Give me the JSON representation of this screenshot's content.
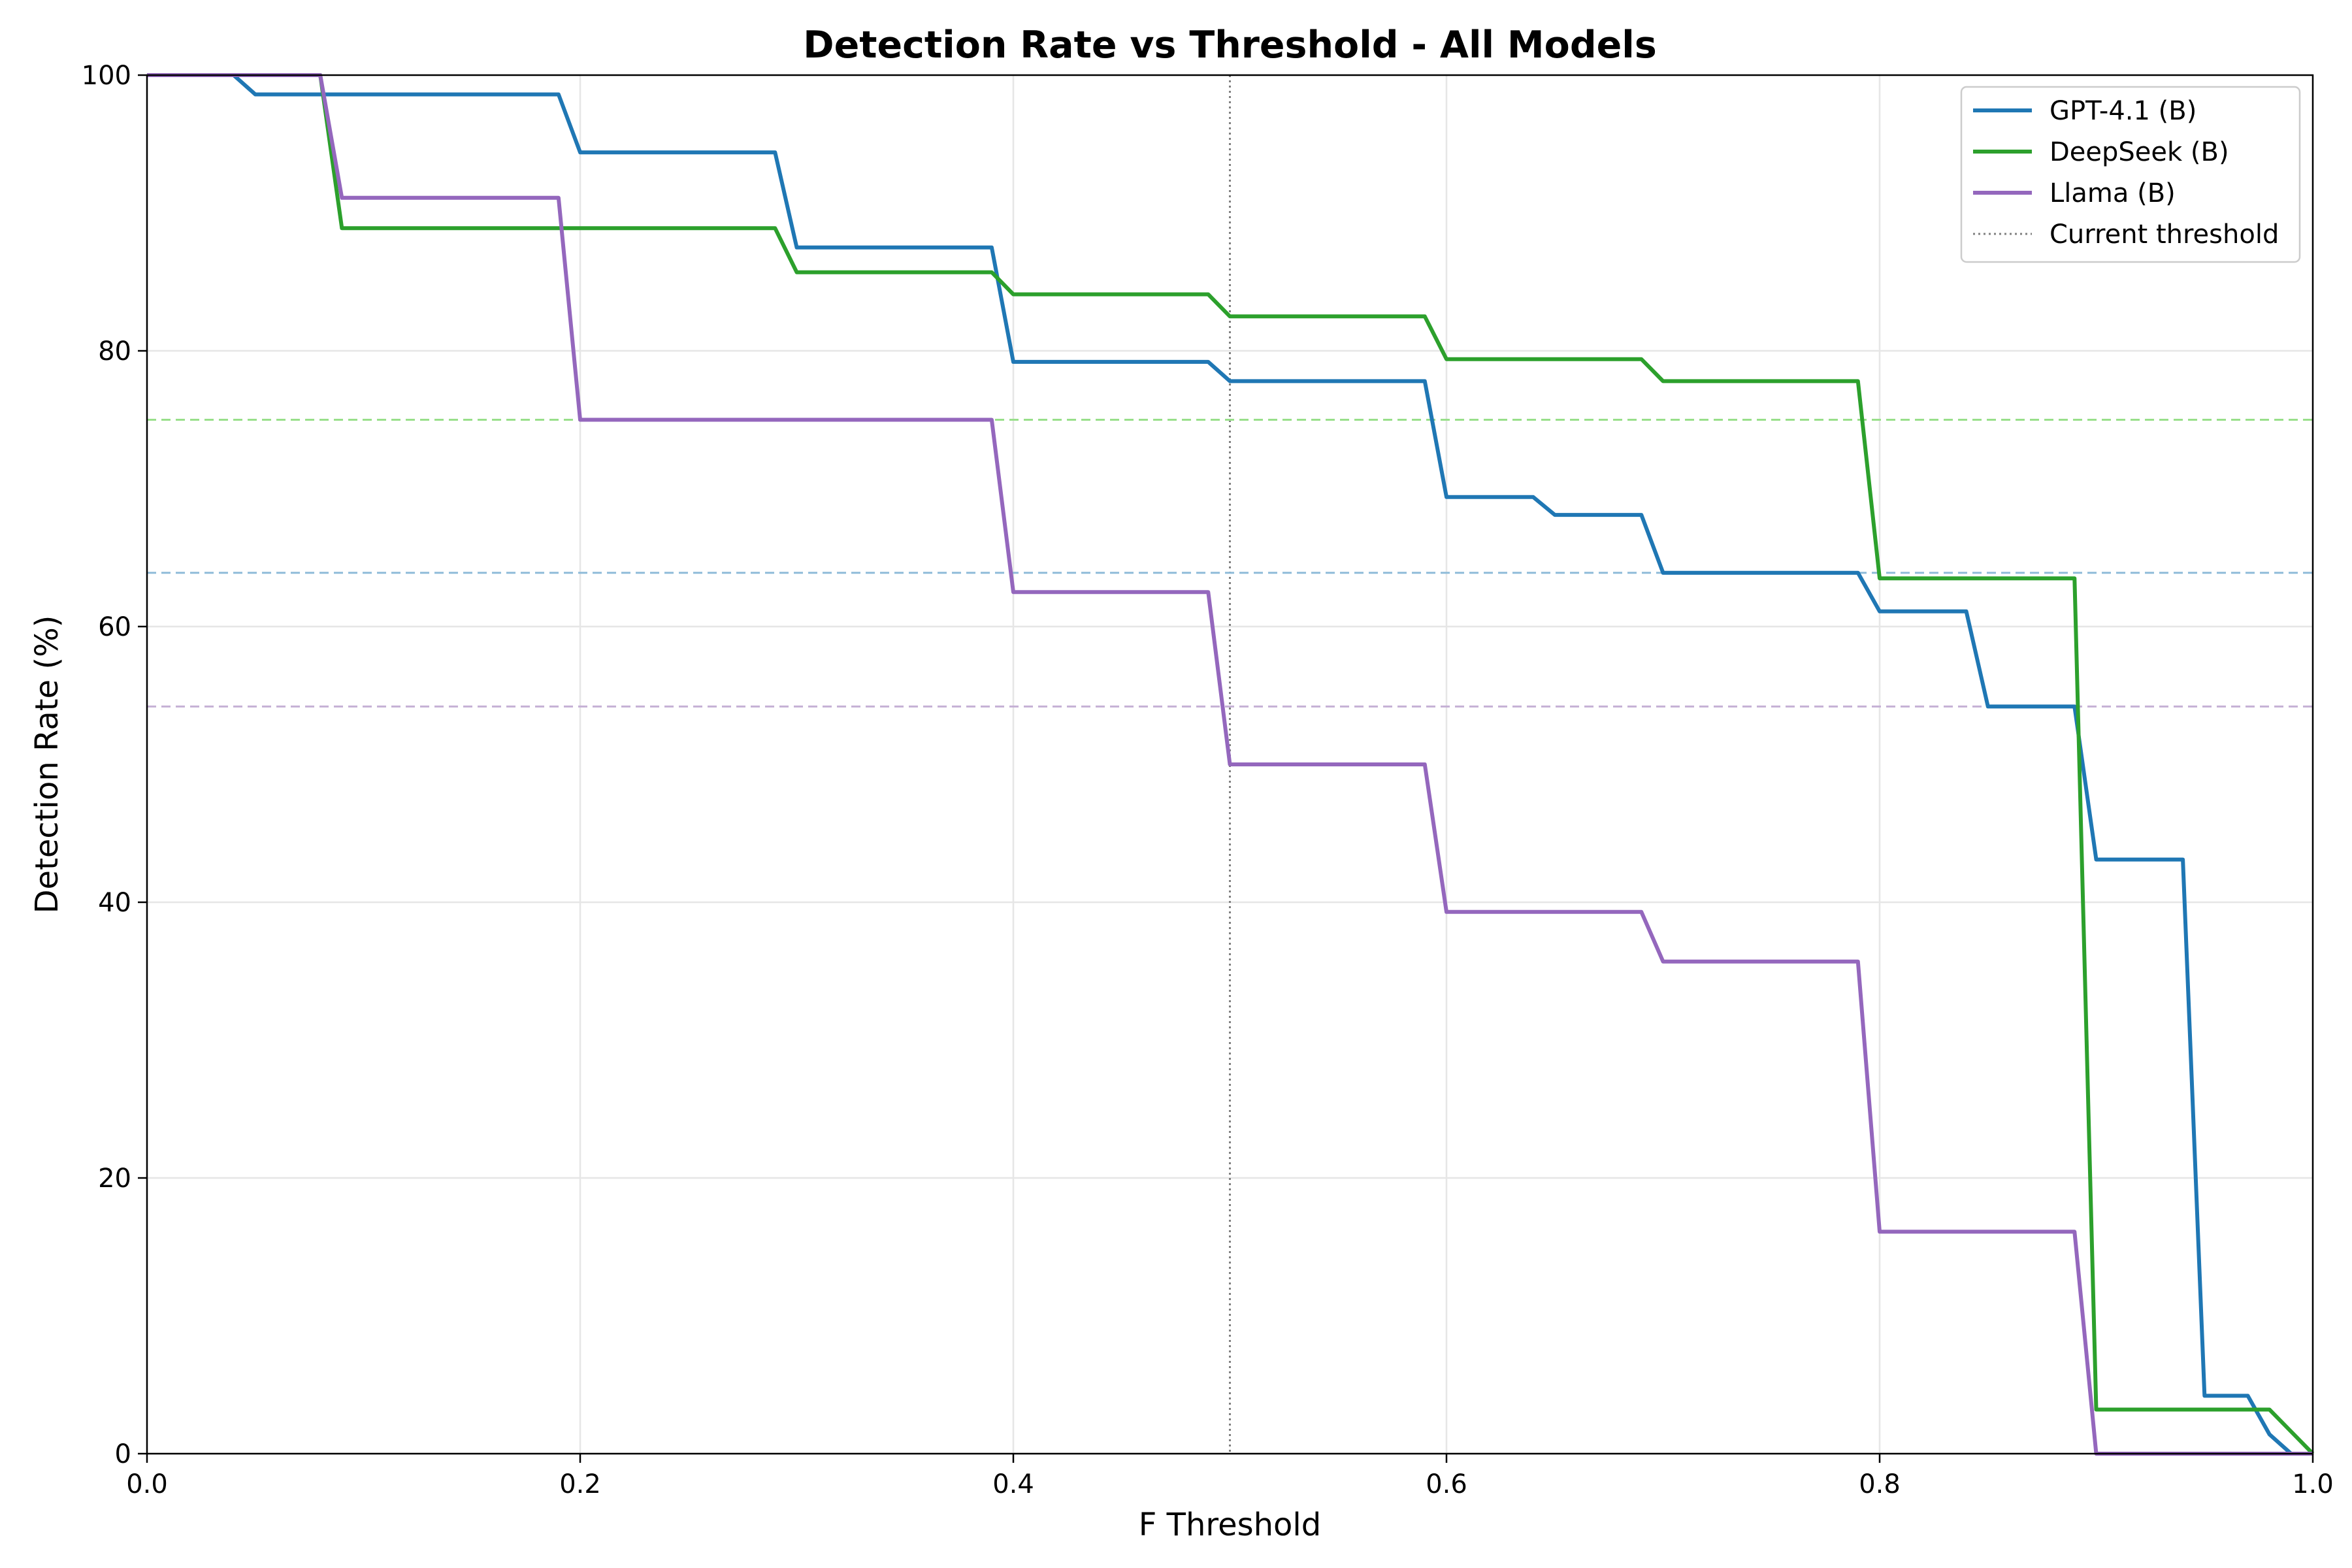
{
  "chart_data": {
    "type": "line",
    "title": "Detection Rate vs Threshold - All Models",
    "xlabel": "F Threshold",
    "ylabel": "Detection Rate (%)",
    "xlim": [
      0.0,
      1.0
    ],
    "ylim": [
      0,
      100
    ],
    "xticks": [
      "0.0",
      "0.2",
      "0.4",
      "0.6",
      "0.8",
      "1.0"
    ],
    "yticks": [
      "0",
      "20",
      "40",
      "60",
      "80",
      "100"
    ],
    "grid": true,
    "legend_position": "top-right",
    "series": [
      {
        "name": "GPT-4.1 (B)",
        "color": "#1f77b4",
        "points": [
          [
            0.0,
            100
          ],
          [
            0.04,
            100
          ],
          [
            0.05,
            98.6
          ],
          [
            0.19,
            98.6
          ],
          [
            0.2,
            94.4
          ],
          [
            0.29,
            94.4
          ],
          [
            0.3,
            87.5
          ],
          [
            0.39,
            87.5
          ],
          [
            0.4,
            79.2
          ],
          [
            0.49,
            79.2
          ],
          [
            0.5,
            77.8
          ],
          [
            0.59,
            77.8
          ],
          [
            0.6,
            69.4
          ],
          [
            0.64,
            69.4
          ],
          [
            0.65,
            68.1
          ],
          [
            0.69,
            68.1
          ],
          [
            0.7,
            63.9
          ],
          [
            0.79,
            63.9
          ],
          [
            0.8,
            61.1
          ],
          [
            0.84,
            61.1
          ],
          [
            0.85,
            54.2
          ],
          [
            0.89,
            54.2
          ],
          [
            0.9,
            43.1
          ],
          [
            0.94,
            43.1
          ],
          [
            0.95,
            4.2
          ],
          [
            0.97,
            4.2
          ],
          [
            0.98,
            1.4
          ],
          [
            0.99,
            0.0
          ],
          [
            1.0,
            0.0
          ]
        ]
      },
      {
        "name": "DeepSeek (B)",
        "color": "#2ca02c",
        "points": [
          [
            0.0,
            100
          ],
          [
            0.08,
            100
          ],
          [
            0.09,
            88.9
          ],
          [
            0.29,
            88.9
          ],
          [
            0.3,
            85.7
          ],
          [
            0.39,
            85.7
          ],
          [
            0.4,
            84.1
          ],
          [
            0.49,
            84.1
          ],
          [
            0.5,
            82.5
          ],
          [
            0.59,
            82.5
          ],
          [
            0.6,
            79.4
          ],
          [
            0.69,
            79.4
          ],
          [
            0.7,
            77.8
          ],
          [
            0.79,
            77.8
          ],
          [
            0.8,
            63.5
          ],
          [
            0.89,
            63.5
          ],
          [
            0.9,
            3.2
          ],
          [
            0.98,
            3.2
          ],
          [
            0.99,
            1.6
          ],
          [
            1.0,
            0.0
          ]
        ]
      },
      {
        "name": "Llama (B)",
        "color": "#9467bd",
        "points": [
          [
            0.0,
            100
          ],
          [
            0.08,
            100
          ],
          [
            0.09,
            91.1
          ],
          [
            0.19,
            91.1
          ],
          [
            0.2,
            75.0
          ],
          [
            0.39,
            75.0
          ],
          [
            0.4,
            62.5
          ],
          [
            0.49,
            62.5
          ],
          [
            0.5,
            50.0
          ],
          [
            0.59,
            50.0
          ],
          [
            0.6,
            39.3
          ],
          [
            0.69,
            39.3
          ],
          [
            0.7,
            35.7
          ],
          [
            0.79,
            35.7
          ],
          [
            0.8,
            16.1
          ],
          [
            0.89,
            16.1
          ],
          [
            0.9,
            0.0
          ],
          [
            1.0,
            0.0
          ]
        ]
      }
    ],
    "reference_lines": [
      {
        "orientation": "vertical",
        "x": 0.5,
        "style": "dotted",
        "color": "#808080",
        "name": "Current threshold"
      },
      {
        "orientation": "horizontal",
        "y": 75.0,
        "style": "dashed",
        "color": "#98df8a"
      },
      {
        "orientation": "horizontal",
        "y": 63.9,
        "style": "dashed",
        "color": "#8fbcd9"
      },
      {
        "orientation": "horizontal",
        "y": 54.2,
        "style": "dashed",
        "color": "#c5b0d5"
      }
    ],
    "legend": [
      "GPT-4.1 (B)",
      "DeepSeek (B)",
      "Llama (B)",
      "Current threshold"
    ]
  }
}
